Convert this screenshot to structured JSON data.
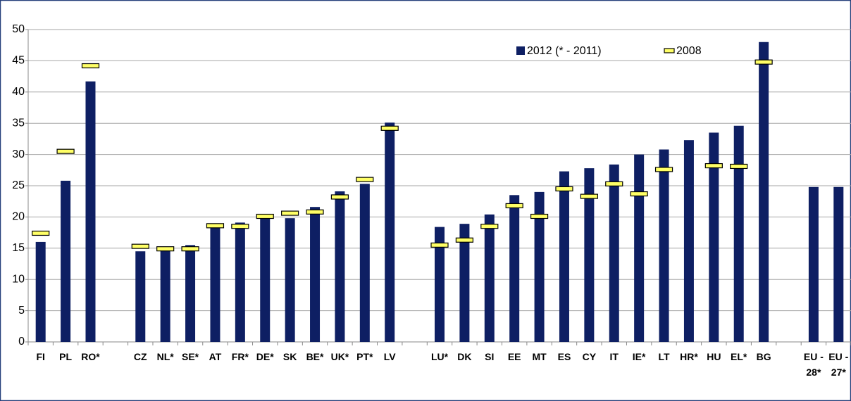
{
  "chart_data": {
    "type": "bar",
    "categories": [
      "FI",
      "PL",
      "RO*",
      null,
      "CZ",
      "NL*",
      "SE*",
      "AT",
      "FR*",
      "DE*",
      "SK",
      "BE*",
      "UK*",
      "PT*",
      "LV",
      null,
      "LU*",
      "DK",
      "SI",
      "EE",
      "MT",
      "ES",
      "CY",
      "IT",
      "IE*",
      "LT",
      "HR*",
      "HU",
      "EL*",
      "BG",
      null,
      "EU - 28*",
      "EU - 27*"
    ],
    "series": [
      {
        "name": "2012 (* - 2011)",
        "type": "bar",
        "color": "#0e1f63",
        "values": [
          16.0,
          25.8,
          41.7,
          null,
          14.5,
          14.8,
          15.5,
          18.5,
          19.1,
          19.8,
          19.8,
          21.6,
          24.1,
          25.3,
          35.1,
          null,
          18.4,
          18.9,
          20.4,
          23.5,
          24.0,
          27.3,
          27.8,
          28.4,
          30.0,
          30.8,
          32.3,
          33.5,
          34.6,
          48.0,
          null,
          24.8,
          24.8
        ]
      },
      {
        "name": "2008",
        "type": "marker",
        "color": "#ffff66",
        "values": [
          17.4,
          30.5,
          44.2,
          null,
          15.3,
          14.9,
          14.9,
          18.6,
          18.5,
          20.1,
          20.6,
          20.8,
          23.2,
          26.0,
          34.2,
          null,
          15.5,
          16.3,
          18.5,
          21.8,
          20.1,
          24.5,
          23.3,
          25.3,
          23.7,
          27.6,
          null,
          28.2,
          28.1,
          44.8,
          null,
          null,
          null
        ]
      }
    ],
    "ylim": [
      0,
      50
    ],
    "yticks": [
      0,
      5,
      10,
      15,
      20,
      25,
      30,
      35,
      40,
      45,
      50
    ],
    "grid": true
  }
}
